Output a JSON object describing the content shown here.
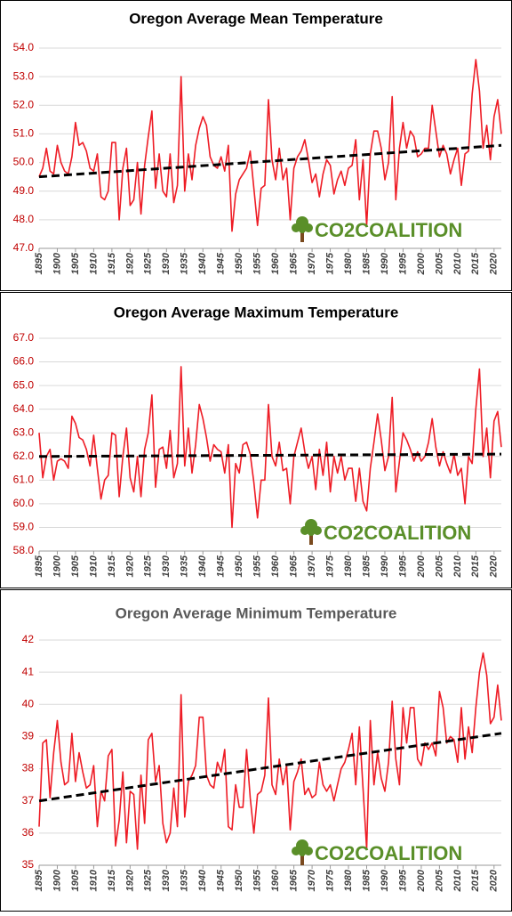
{
  "chart_data": [
    {
      "type": "line",
      "title": "Oregon Average Mean Temperature",
      "title_color": "#000000",
      "logo": "CO2COALITION",
      "x": [
        1895,
        1896,
        1897,
        1898,
        1899,
        1900,
        1901,
        1902,
        1903,
        1904,
        1905,
        1906,
        1907,
        1908,
        1909,
        1910,
        1911,
        1912,
        1913,
        1914,
        1915,
        1916,
        1917,
        1918,
        1919,
        1920,
        1921,
        1922,
        1923,
        1924,
        1925,
        1926,
        1927,
        1928,
        1929,
        1930,
        1931,
        1932,
        1933,
        1934,
        1935,
        1936,
        1937,
        1938,
        1939,
        1940,
        1941,
        1942,
        1943,
        1944,
        1945,
        1946,
        1947,
        1948,
        1949,
        1950,
        1951,
        1952,
        1953,
        1954,
        1955,
        1956,
        1957,
        1958,
        1959,
        1960,
        1961,
        1962,
        1963,
        1964,
        1965,
        1966,
        1967,
        1968,
        1969,
        1970,
        1971,
        1972,
        1973,
        1974,
        1975,
        1976,
        1977,
        1978,
        1979,
        1980,
        1981,
        1982,
        1983,
        1984,
        1985,
        1986,
        1987,
        1988,
        1989,
        1990,
        1991,
        1992,
        1993,
        1994,
        1995,
        1996,
        1997,
        1998,
        1999,
        2000,
        2001,
        2002,
        2003,
        2004,
        2005,
        2006,
        2007,
        2008,
        2009,
        2010,
        2011,
        2012,
        2013,
        2014,
        2015,
        2016,
        2017,
        2018,
        2019,
        2020,
        2021,
        2022
      ],
      "series": [
        {
          "color": "#ee1c25",
          "values": [
            49.5,
            49.8,
            50.5,
            49.7,
            49.6,
            50.6,
            50.0,
            49.7,
            49.6,
            50.2,
            51.4,
            50.6,
            50.7,
            50.4,
            49.8,
            49.7,
            50.3,
            48.8,
            48.7,
            49.0,
            50.7,
            50.7,
            48.0,
            49.8,
            50.5,
            48.5,
            48.7,
            50.0,
            48.2,
            49.9,
            50.9,
            51.8,
            49.1,
            50.3,
            49.0,
            48.8,
            50.3,
            48.6,
            49.2,
            53.0,
            49.0,
            50.3,
            49.4,
            50.6,
            51.2,
            51.6,
            51.3,
            50.2,
            49.9,
            49.8,
            50.2,
            49.7,
            50.6,
            47.6,
            48.9,
            49.4,
            49.6,
            49.8,
            50.4,
            49.1,
            47.8,
            49.1,
            49.2,
            52.2,
            50.1,
            49.4,
            50.5,
            49.4,
            49.8,
            48.0,
            49.8,
            50.2,
            50.4,
            50.8,
            50.1,
            49.3,
            49.6,
            48.8,
            49.6,
            50.1,
            49.9,
            48.9,
            49.4,
            49.7,
            49.2,
            49.8,
            49.9,
            50.8,
            48.7,
            50.1,
            47.8,
            50.3,
            51.1,
            51.1,
            50.5,
            49.4,
            50.0,
            52.3,
            48.7,
            50.5,
            51.4,
            50.5,
            51.1,
            50.9,
            50.2,
            50.3,
            50.5,
            50.5,
            52.0,
            51.1,
            50.2,
            50.6,
            50.3,
            49.6,
            50.1,
            50.5,
            49.2,
            50.3,
            50.4,
            52.4,
            53.6,
            52.5,
            50.5,
            51.3,
            50.1,
            51.6,
            52.2,
            51.0
          ]
        }
      ],
      "trendline": {
        "color": "#000000",
        "x": [
          1895,
          2022
        ],
        "values": [
          49.5,
          50.6
        ]
      },
      "xlim": [
        1895,
        2022
      ],
      "xticks": [
        1895,
        1900,
        1905,
        1910,
        1915,
        1920,
        1925,
        1930,
        1935,
        1940,
        1945,
        1950,
        1955,
        1960,
        1965,
        1970,
        1975,
        1980,
        1985,
        1990,
        1995,
        2000,
        2005,
        2010,
        2015,
        2020
      ],
      "ylim": [
        47,
        54
      ],
      "yticks": [
        {
          "value": 47,
          "label": "47.0"
        },
        {
          "value": 48,
          "label": "48.0"
        },
        {
          "value": 49,
          "label": "49.0"
        },
        {
          "value": 50,
          "label": "50.0"
        },
        {
          "value": 51,
          "label": "51.0"
        },
        {
          "value": 52,
          "label": "52.0"
        },
        {
          "value": 53,
          "label": "53.0"
        },
        {
          "value": 54,
          "label": "54.0"
        }
      ],
      "grid": true
    },
    {
      "type": "line",
      "title": "Oregon Average Maximum Temperature",
      "title_color": "#000000",
      "logo": "CO2COALITION",
      "x": [
        1895,
        1896,
        1897,
        1898,
        1899,
        1900,
        1901,
        1902,
        1903,
        1904,
        1905,
        1906,
        1907,
        1908,
        1909,
        1910,
        1911,
        1912,
        1913,
        1914,
        1915,
        1916,
        1917,
        1918,
        1919,
        1920,
        1921,
        1922,
        1923,
        1924,
        1925,
        1926,
        1927,
        1928,
        1929,
        1930,
        1931,
        1932,
        1933,
        1934,
        1935,
        1936,
        1937,
        1938,
        1939,
        1940,
        1941,
        1942,
        1943,
        1944,
        1945,
        1946,
        1947,
        1948,
        1949,
        1950,
        1951,
        1952,
        1953,
        1954,
        1955,
        1956,
        1957,
        1958,
        1959,
        1960,
        1961,
        1962,
        1963,
        1964,
        1965,
        1966,
        1967,
        1968,
        1969,
        1970,
        1971,
        1972,
        1973,
        1974,
        1975,
        1976,
        1977,
        1978,
        1979,
        1980,
        1981,
        1982,
        1983,
        1984,
        1985,
        1986,
        1987,
        1988,
        1989,
        1990,
        1991,
        1992,
        1993,
        1994,
        1995,
        1996,
        1997,
        1998,
        1999,
        2000,
        2001,
        2002,
        2003,
        2004,
        2005,
        2006,
        2007,
        2008,
        2009,
        2010,
        2011,
        2012,
        2013,
        2014,
        2015,
        2016,
        2017,
        2018,
        2019,
        2020,
        2021,
        2022
      ],
      "series": [
        {
          "color": "#ee1c25",
          "values": [
            63.0,
            61.1,
            62.0,
            62.3,
            61.0,
            61.8,
            61.9,
            61.8,
            61.5,
            63.7,
            63.4,
            62.8,
            62.7,
            62.3,
            61.6,
            62.9,
            61.5,
            60.2,
            61.0,
            61.2,
            63.0,
            62.9,
            60.3,
            62.0,
            63.2,
            61.1,
            60.5,
            62.0,
            60.3,
            62.3,
            63.0,
            64.6,
            60.7,
            62.3,
            62.4,
            61.5,
            63.1,
            61.1,
            61.7,
            65.8,
            61.6,
            63.2,
            61.3,
            62.5,
            64.2,
            63.6,
            62.8,
            61.8,
            62.5,
            62.3,
            62.2,
            61.3,
            62.5,
            59.0,
            61.7,
            61.3,
            62.5,
            62.6,
            62.1,
            60.9,
            59.4,
            61.0,
            61.0,
            64.2,
            62.0,
            61.6,
            62.6,
            61.4,
            61.5,
            60.0,
            62.0,
            62.6,
            63.2,
            62.2,
            61.5,
            62.0,
            60.6,
            62.3,
            61.2,
            62.6,
            60.5,
            62.0,
            61.3,
            62.0,
            61.0,
            61.5,
            61.5,
            60.1,
            61.5,
            60.1,
            59.7,
            61.5,
            62.6,
            63.8,
            62.7,
            61.4,
            62.0,
            64.5,
            60.5,
            61.8,
            63.0,
            62.7,
            62.3,
            61.8,
            62.2,
            61.8,
            62.0,
            62.6,
            63.6,
            62.4,
            61.6,
            62.2,
            61.7,
            61.3,
            62.1,
            61.2,
            61.5,
            60.0,
            62.0,
            61.7,
            64.0,
            65.7,
            62.0,
            63.2,
            61.1,
            63.5,
            63.9,
            62.4
          ]
        }
      ],
      "trendline": {
        "color": "#000000",
        "x": [
          1895,
          2022
        ],
        "values": [
          62.0,
          62.1
        ]
      },
      "xlim": [
        1895,
        2022
      ],
      "xticks": [
        1895,
        1900,
        1905,
        1910,
        1915,
        1920,
        1925,
        1930,
        1935,
        1940,
        1945,
        1950,
        1955,
        1960,
        1965,
        1970,
        1975,
        1980,
        1985,
        1990,
        1995,
        2000,
        2005,
        2010,
        2015,
        2020
      ],
      "ylim": [
        58,
        67
      ],
      "yticks": [
        {
          "value": 58,
          "label": "58.0"
        },
        {
          "value": 59,
          "label": "59.0"
        },
        {
          "value": 60,
          "label": "60.0"
        },
        {
          "value": 61,
          "label": "61.0"
        },
        {
          "value": 62,
          "label": "62.0"
        },
        {
          "value": 63,
          "label": "63.0"
        },
        {
          "value": 64,
          "label": "64.0"
        },
        {
          "value": 65,
          "label": "65.0"
        },
        {
          "value": 66,
          "label": "66.0"
        },
        {
          "value": 67,
          "label": "67.0"
        }
      ],
      "grid": true
    },
    {
      "type": "line",
      "title": "Oregon Average Minimum Temperature",
      "title_color": "#595959",
      "logo": "CO2COALITION",
      "x": [
        1895,
        1896,
        1897,
        1898,
        1899,
        1900,
        1901,
        1902,
        1903,
        1904,
        1905,
        1906,
        1907,
        1908,
        1909,
        1910,
        1911,
        1912,
        1913,
        1914,
        1915,
        1916,
        1917,
        1918,
        1919,
        1920,
        1921,
        1922,
        1923,
        1924,
        1925,
        1926,
        1927,
        1928,
        1929,
        1930,
        1931,
        1932,
        1933,
        1934,
        1935,
        1936,
        1937,
        1938,
        1939,
        1940,
        1941,
        1942,
        1943,
        1944,
        1945,
        1946,
        1947,
        1948,
        1949,
        1950,
        1951,
        1952,
        1953,
        1954,
        1955,
        1956,
        1957,
        1958,
        1959,
        1960,
        1961,
        1962,
        1963,
        1964,
        1965,
        1966,
        1967,
        1968,
        1969,
        1970,
        1971,
        1972,
        1973,
        1974,
        1975,
        1976,
        1977,
        1978,
        1979,
        1980,
        1981,
        1982,
        1983,
        1984,
        1985,
        1986,
        1987,
        1988,
        1989,
        1990,
        1991,
        1992,
        1993,
        1994,
        1995,
        1996,
        1997,
        1998,
        1999,
        2000,
        2001,
        2002,
        2003,
        2004,
        2005,
        2006,
        2007,
        2008,
        2009,
        2010,
        2011,
        2012,
        2013,
        2014,
        2015,
        2016,
        2017,
        2018,
        2019,
        2020,
        2021,
        2022
      ],
      "series": [
        {
          "color": "#ee1c25",
          "values": [
            36.2,
            38.8,
            38.9,
            37.1,
            38.5,
            39.5,
            38.2,
            37.5,
            37.6,
            39.1,
            37.6,
            38.5,
            37.9,
            37.4,
            37.5,
            38.1,
            36.2,
            37.3,
            37.0,
            38.4,
            38.6,
            35.6,
            36.4,
            37.9,
            35.7,
            37.3,
            37.2,
            35.5,
            37.8,
            36.3,
            38.9,
            39.1,
            37.6,
            38.1,
            36.3,
            35.7,
            36.0,
            37.4,
            36.2,
            40.3,
            36.5,
            37.6,
            37.8,
            38.1,
            39.6,
            39.6,
            37.8,
            37.5,
            37.4,
            38.2,
            37.9,
            38.6,
            36.2,
            36.1,
            37.5,
            36.8,
            36.8,
            38.6,
            37.1,
            36.0,
            37.2,
            37.3,
            37.8,
            40.2,
            37.5,
            37.2,
            38.3,
            37.5,
            38.1,
            36.1,
            37.6,
            37.9,
            38.3,
            37.2,
            37.4,
            37.1,
            37.2,
            38.2,
            37.5,
            37.3,
            37.5,
            37.0,
            37.5,
            38.0,
            38.2,
            38.6,
            39.1,
            37.5,
            39.3,
            37.4,
            35.5,
            39.5,
            37.5,
            38.5,
            37.7,
            37.3,
            38.2,
            40.1,
            38.3,
            37.5,
            39.9,
            38.8,
            39.9,
            39.9,
            38.3,
            38.1,
            38.8,
            38.6,
            38.8,
            38.4,
            40.4,
            39.9,
            38.8,
            39.0,
            38.9,
            38.2,
            39.9,
            38.3,
            39.3,
            38.5,
            39.9,
            41.0,
            41.6,
            40.9,
            39.4,
            39.6,
            40.6,
            39.5
          ]
        }
      ],
      "trendline": {
        "color": "#000000",
        "x": [
          1895,
          2022
        ],
        "values": [
          37.0,
          39.1
        ]
      },
      "xlim": [
        1895,
        2022
      ],
      "xticks": [
        1895,
        1900,
        1905,
        1910,
        1915,
        1920,
        1925,
        1930,
        1935,
        1940,
        1945,
        1950,
        1955,
        1960,
        1965,
        1970,
        1975,
        1980,
        1985,
        1990,
        1995,
        2000,
        2005,
        2010,
        2015,
        2020
      ],
      "ylim": [
        35,
        42
      ],
      "yticks": [
        35,
        36,
        37,
        38,
        39,
        40,
        41,
        42
      ],
      "grid": true
    }
  ]
}
